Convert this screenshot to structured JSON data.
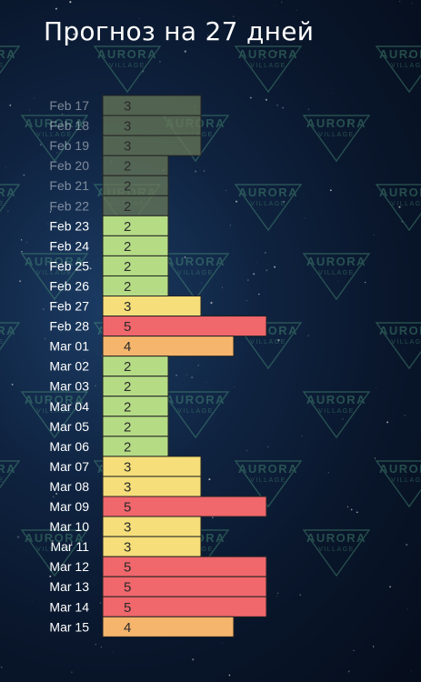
{
  "title": "Прогноз на 27 дней",
  "watermark": {
    "brand": "AURORA",
    "sub": "VILLAGE"
  },
  "colors": {
    "1": "#9ed47a",
    "2": "#b5dc85",
    "3": "#f6df7a",
    "4": "#f5b56d",
    "5": "#f0676c",
    "past_fill": "#6a7a58",
    "watermark": "#4f9c7e"
  },
  "chart_data": {
    "type": "bar",
    "orientation": "horizontal",
    "title": "Прогноз на 27 дней",
    "categories": [
      "Feb 17",
      "Feb 18",
      "Feb 19",
      "Feb 20",
      "Feb 21",
      "Feb 22",
      "Feb 23",
      "Feb 24",
      "Feb 25",
      "Feb 26",
      "Feb 27",
      "Feb 28",
      "Mar 01",
      "Mar 02",
      "Mar 03",
      "Mar 04",
      "Mar 05",
      "Mar 06",
      "Mar 07",
      "Mar 08",
      "Mar 09",
      "Mar 10",
      "Mar 11",
      "Mar 12",
      "Mar 13",
      "Mar 14",
      "Mar 15"
    ],
    "values": [
      3,
      3,
      3,
      2,
      2,
      2,
      2,
      2,
      2,
      2,
      3,
      5,
      4,
      2,
      2,
      2,
      2,
      2,
      3,
      3,
      5,
      3,
      3,
      5,
      5,
      5,
      4
    ],
    "past_count": 6,
    "xlim": [
      0,
      5
    ]
  }
}
